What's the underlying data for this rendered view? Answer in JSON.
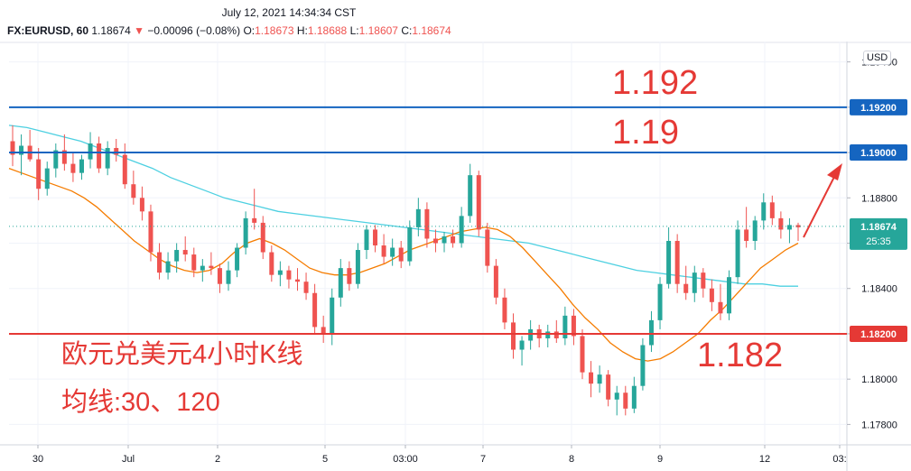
{
  "header": {
    "datetime": "July 12, 2021 14:34:34 CST",
    "symbol": "FX:EURUSD, 60",
    "last": "1.18674",
    "change": "−0.00096 (−0.08%)",
    "o_label": "O:",
    "o_value": "1.18673",
    "h_label": "H:",
    "h_value": "1.18688",
    "l_label": "L:",
    "l_value": "1.18607",
    "c_label": "C:",
    "c_value": "1.18674"
  },
  "currency_label": "USD",
  "colors": {
    "up": "#26a69a",
    "down": "#ef5350",
    "ma30": "#f57c00",
    "ma120": "#4dd0e1",
    "level_blue": "#1565c0",
    "level_red": "#e53935",
    "annotation": "#e53935",
    "last_price_bg": "#26a69a"
  },
  "chart_data": {
    "type": "candlestick",
    "x_ticks": [
      "30",
      "Jul",
      "2",
      "5",
      "03:00",
      "7",
      "8",
      "9",
      "12",
      "03:"
    ],
    "y_ticks": [
      "1.17800",
      "1.18000",
      "1.18200",
      "1.18400",
      "1.18600",
      "1.18800",
      "1.19000",
      "1.19200",
      "1.19400"
    ],
    "ylim": [
      1.1771,
      1.1949
    ],
    "horizontal_levels": [
      {
        "value": 1.192,
        "label": "1.19200",
        "color": "#1565c0"
      },
      {
        "value": 1.19,
        "label": "1.19000",
        "color": "#1565c0"
      },
      {
        "value": 1.182,
        "label": "1.18200",
        "color": "#e53935"
      }
    ],
    "last_price": {
      "value": 1.18674,
      "label": "1.18674",
      "countdown": "25:35"
    },
    "annotations": [
      {
        "text": "1.192"
      },
      {
        "text": "1.19"
      },
      {
        "text": "1.182"
      },
      {
        "text": "欧元兑美元4小时K线"
      },
      {
        "text": "均线:30、120"
      }
    ],
    "ma30": [
      1.1893,
      1.1891,
      1.1889,
      1.1887,
      1.1885,
      1.1883,
      1.188,
      1.1876,
      1.1871,
      1.1866,
      1.1861,
      1.1857,
      1.1853,
      1.185,
      1.1848,
      1.1847,
      1.1848,
      1.1851,
      1.1856,
      1.186,
      1.1862,
      1.186,
      1.1857,
      1.1853,
      1.1849,
      1.1847,
      1.1846,
      1.1846,
      1.1847,
      1.1849,
      1.1851,
      1.1854,
      1.1857,
      1.1859,
      1.1861,
      1.1863,
      1.1865,
      1.1866,
      1.1867,
      1.1866,
      1.1863,
      1.1858,
      1.1852,
      1.1846,
      1.184,
      1.1833,
      1.1827,
      1.1822,
      1.1816,
      1.1812,
      1.1809,
      1.1808,
      1.1809,
      1.1812,
      1.1816,
      1.182,
      1.1826,
      1.1831,
      1.1837,
      1.1843,
      1.1849,
      1.1853,
      1.1857,
      1.186
    ],
    "ma120": [
      1.1912,
      1.1911,
      1.1909,
      1.1907,
      1.1905,
      1.1902,
      1.1899,
      1.1896,
      1.1893,
      1.1889,
      1.1886,
      1.1883,
      1.188,
      1.1878,
      1.1876,
      1.1874,
      1.1873,
      1.1872,
      1.1871,
      1.187,
      1.1869,
      1.1868,
      1.1867,
      1.1866,
      1.1865,
      1.1864,
      1.1863,
      1.1862,
      1.1861,
      1.186,
      1.1858,
      1.1856,
      1.1854,
      1.1852,
      1.185,
      1.1848,
      1.1847,
      1.1846,
      1.1845,
      1.1844,
      1.1843,
      1.1842,
      1.1842,
      1.1841,
      1.1841
    ],
    "candles": [
      [
        1.1905,
        1.1912,
        1.1894,
        1.1899
      ],
      [
        1.1899,
        1.1908,
        1.189,
        1.1903
      ],
      [
        1.1903,
        1.191,
        1.1896,
        1.1897
      ],
      [
        1.1897,
        1.1902,
        1.1879,
        1.1884
      ],
      [
        1.1884,
        1.1896,
        1.1881,
        1.1893
      ],
      [
        1.1893,
        1.1904,
        1.1889,
        1.1901
      ],
      [
        1.1901,
        1.1908,
        1.1892,
        1.1895
      ],
      [
        1.1895,
        1.19,
        1.1887,
        1.1891
      ],
      [
        1.1891,
        1.1899,
        1.1888,
        1.1897
      ],
      [
        1.1897,
        1.1909,
        1.1893,
        1.1904
      ],
      [
        1.1904,
        1.1907,
        1.1891,
        1.1893
      ],
      [
        1.1893,
        1.1905,
        1.189,
        1.1902
      ],
      [
        1.1902,
        1.1906,
        1.1896,
        1.1899
      ],
      [
        1.1899,
        1.1904,
        1.1884,
        1.1886
      ],
      [
        1.1886,
        1.1892,
        1.1877,
        1.188
      ],
      [
        1.188,
        1.1885,
        1.187,
        1.1874
      ],
      [
        1.1874,
        1.1877,
        1.1852,
        1.1856
      ],
      [
        1.1856,
        1.186,
        1.1844,
        1.1847
      ],
      [
        1.1847,
        1.1856,
        1.1844,
        1.1852
      ],
      [
        1.1852,
        1.186,
        1.1847,
        1.1857
      ],
      [
        1.1857,
        1.1863,
        1.1852,
        1.1855
      ],
      [
        1.1855,
        1.1858,
        1.1845,
        1.1848
      ],
      [
        1.1848,
        1.1853,
        1.1843,
        1.185
      ],
      [
        1.185,
        1.1856,
        1.1846,
        1.1849
      ],
      [
        1.1849,
        1.1851,
        1.1838,
        1.1842
      ],
      [
        1.1842,
        1.1852,
        1.1839,
        1.1848
      ],
      [
        1.1848,
        1.186,
        1.1845,
        1.1858
      ],
      [
        1.1858,
        1.1874,
        1.1855,
        1.1871
      ],
      [
        1.1871,
        1.1884,
        1.1866,
        1.1869
      ],
      [
        1.1869,
        1.1872,
        1.1853,
        1.1856
      ],
      [
        1.1856,
        1.1859,
        1.1843,
        1.1846
      ],
      [
        1.1846,
        1.1852,
        1.1841,
        1.1848
      ],
      [
        1.1848,
        1.185,
        1.184,
        1.1844
      ],
      [
        1.1844,
        1.1849,
        1.1839,
        1.1843
      ],
      [
        1.1843,
        1.1847,
        1.1835,
        1.1838
      ],
      [
        1.1838,
        1.1842,
        1.182,
        1.1823
      ],
      [
        1.1823,
        1.1828,
        1.1816,
        1.182
      ],
      [
        1.182,
        1.184,
        1.1815,
        1.1836
      ],
      [
        1.1836,
        1.1853,
        1.1832,
        1.1849
      ],
      [
        1.1849,
        1.1852,
        1.1839,
        1.1842
      ],
      [
        1.1842,
        1.186,
        1.184,
        1.1857
      ],
      [
        1.1857,
        1.1868,
        1.1853,
        1.1866
      ],
      [
        1.1866,
        1.1868,
        1.1856,
        1.1859
      ],
      [
        1.1859,
        1.1864,
        1.1851,
        1.1854
      ],
      [
        1.1854,
        1.1862,
        1.185,
        1.1858
      ],
      [
        1.1858,
        1.1861,
        1.1849,
        1.1852
      ],
      [
        1.1852,
        1.187,
        1.185,
        1.1867
      ],
      [
        1.1867,
        1.188,
        1.1863,
        1.1875
      ],
      [
        1.1875,
        1.1878,
        1.1858,
        1.1862
      ],
      [
        1.1862,
        1.1866,
        1.1856,
        1.186
      ],
      [
        1.186,
        1.1865,
        1.1856,
        1.1863
      ],
      [
        1.1863,
        1.1866,
        1.1858,
        1.186
      ],
      [
        1.186,
        1.1876,
        1.1858,
        1.1872
      ],
      [
        1.1872,
        1.1895,
        1.1869,
        1.189
      ],
      [
        1.189,
        1.1892,
        1.1863,
        1.1866
      ],
      [
        1.1866,
        1.1869,
        1.1847,
        1.185
      ],
      [
        1.185,
        1.1853,
        1.1833,
        1.1836
      ],
      [
        1.1836,
        1.184,
        1.1822,
        1.1825
      ],
      [
        1.1825,
        1.1829,
        1.1809,
        1.1813
      ],
      [
        1.1813,
        1.1819,
        1.1806,
        1.1817
      ],
      [
        1.1817,
        1.1826,
        1.1813,
        1.1822
      ],
      [
        1.1822,
        1.1824,
        1.1814,
        1.1818
      ],
      [
        1.1818,
        1.1824,
        1.1814,
        1.1821
      ],
      [
        1.1821,
        1.1826,
        1.1816,
        1.1818
      ],
      [
        1.1818,
        1.1832,
        1.1815,
        1.1828
      ],
      [
        1.1828,
        1.1831,
        1.1815,
        1.1819
      ],
      [
        1.1819,
        1.1822,
        1.18,
        1.1803
      ],
      [
        1.1803,
        1.1808,
        1.1792,
        1.1798
      ],
      [
        1.1798,
        1.1806,
        1.1794,
        1.1802
      ],
      [
        1.1802,
        1.1804,
        1.1788,
        1.1791
      ],
      [
        1.1791,
        1.1797,
        1.1784,
        1.1794
      ],
      [
        1.1794,
        1.1797,
        1.1784,
        1.1787
      ],
      [
        1.1787,
        1.1801,
        1.1785,
        1.1797
      ],
      [
        1.1797,
        1.1818,
        1.1795,
        1.1815
      ],
      [
        1.1815,
        1.183,
        1.1812,
        1.1826
      ],
      [
        1.1826,
        1.1845,
        1.1822,
        1.1842
      ],
      [
        1.1842,
        1.1867,
        1.184,
        1.1861
      ],
      [
        1.1861,
        1.1864,
        1.1838,
        1.1842
      ],
      [
        1.1842,
        1.185,
        1.1835,
        1.1838
      ],
      [
        1.1838,
        1.185,
        1.1834,
        1.1847
      ],
      [
        1.1847,
        1.1849,
        1.1836,
        1.184
      ],
      [
        1.184,
        1.1844,
        1.183,
        1.1834
      ],
      [
        1.1834,
        1.1842,
        1.1826,
        1.1829
      ],
      [
        1.1829,
        1.1848,
        1.1826,
        1.1845
      ],
      [
        1.1845,
        1.187,
        1.1842,
        1.1866
      ],
      [
        1.1866,
        1.1876,
        1.1858,
        1.1861
      ],
      [
        1.1861,
        1.1872,
        1.1857,
        1.187
      ],
      [
        1.187,
        1.1882,
        1.1866,
        1.1878
      ],
      [
        1.1878,
        1.1881,
        1.1868,
        1.1871
      ],
      [
        1.1871,
        1.1874,
        1.1862,
        1.1866
      ],
      [
        1.1866,
        1.1871,
        1.186,
        1.1868
      ],
      [
        1.1868,
        1.1869,
        1.1861,
        1.1867
      ]
    ]
  }
}
